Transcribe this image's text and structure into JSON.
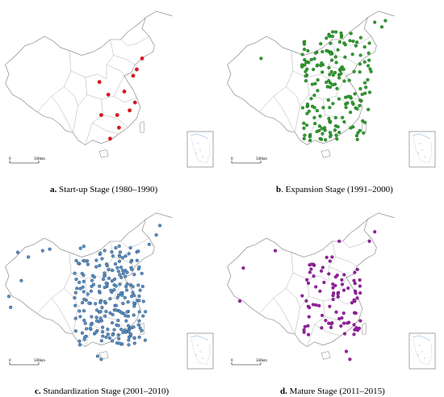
{
  "panels": [
    {
      "id": "a",
      "letter": "a.",
      "title": "Start-up Stage (1980–1990)",
      "scale_zero": "0",
      "scale_label": "500km",
      "dot_color": "#e8141b",
      "dot_edge": "#8a0a0e",
      "points": [
        [
          0.8,
          0.32
        ],
        [
          0.77,
          0.39
        ],
        [
          0.75,
          0.43
        ],
        [
          0.56,
          0.47
        ],
        [
          0.61,
          0.55
        ],
        [
          0.7,
          0.53
        ],
        [
          0.76,
          0.6
        ],
        [
          0.73,
          0.65
        ],
        [
          0.57,
          0.68
        ],
        [
          0.66,
          0.68
        ],
        [
          0.67,
          0.76
        ],
        [
          0.62,
          0.83
        ]
      ]
    },
    {
      "id": "b",
      "letter": "b",
      "title": ". Expansion Stage (1991–2000)",
      "scale_zero": "0",
      "scale_label": "500km",
      "dot_color": "#2e9e2e",
      "dot_edge": "#155c15",
      "points": []
    },
    {
      "id": "c",
      "letter": "c.",
      "title": "Standardization Stage (2001–2010)",
      "scale_zero": "0",
      "scale_label": "500km",
      "dot_color": "#5b8fc2",
      "dot_edge": "#1c3f66",
      "points": []
    },
    {
      "id": "d",
      "letter": "d.",
      "title": "Mature Stage (2011–2015)",
      "scale_zero": "0",
      "scale_label": "500km",
      "dot_color": "#9b1fa6",
      "dot_edge": "#5a0c61",
      "points": []
    }
  ]
}
